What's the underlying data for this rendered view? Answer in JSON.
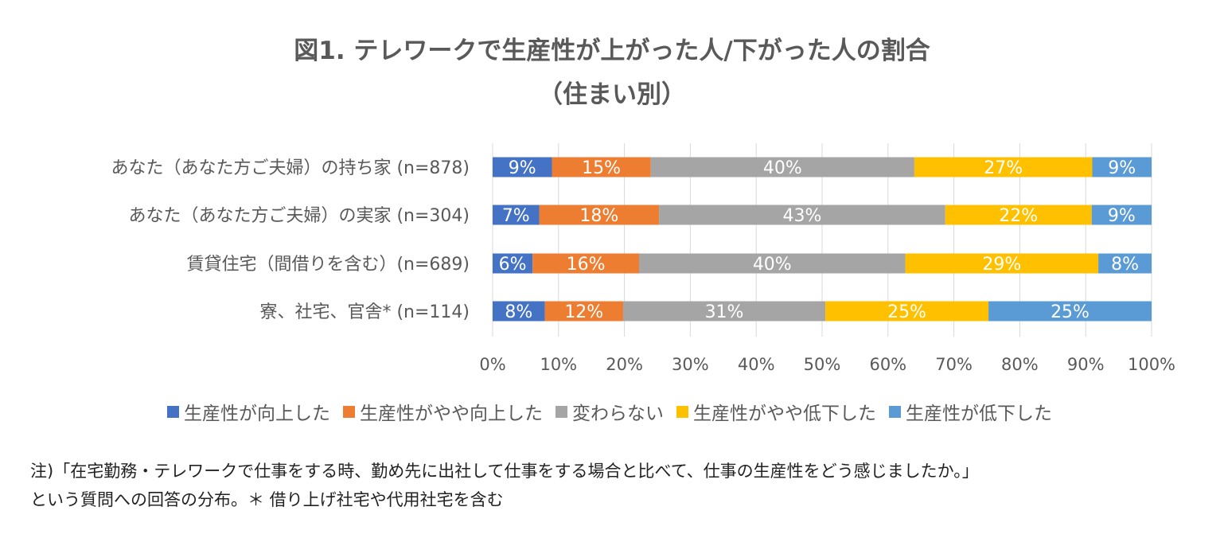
{
  "title_line1": "図1. テレワークで生産性が上がった人/下がった人の割合",
  "title_line2": "（住まい別）",
  "chart_data": {
    "type": "bar",
    "orientation": "horizontal",
    "stacked": "percent",
    "categories": [
      "あなた（あなた方ご夫婦）の持ち家 (n=878)",
      "あなた（あなた方ご夫婦）の実家 (n=304)",
      "賃貸住宅（間借りを含む）(n=689)",
      "寮、社宅、官舎* (n=114)"
    ],
    "series": [
      {
        "name": "生産性が向上した",
        "color": "#4472C4",
        "values": [
          9,
          7,
          6,
          8
        ],
        "labels": [
          "9%",
          "7%",
          "6%",
          "8%"
        ]
      },
      {
        "name": "生産性がやや向上した",
        "color": "#ED7D31",
        "values": [
          15,
          18,
          16,
          12
        ],
        "labels": [
          "15%",
          "18%",
          "16%",
          "12%"
        ]
      },
      {
        "name": "変わらない",
        "color": "#A5A5A5",
        "values": [
          40,
          43,
          40,
          31
        ],
        "labels": [
          "40%",
          "43%",
          "40%",
          "31%"
        ]
      },
      {
        "name": "生産性がやや低下した",
        "color": "#FFC000",
        "values": [
          27,
          22,
          29,
          25
        ],
        "labels": [
          "27%",
          "22%",
          "29%",
          "25%"
        ]
      },
      {
        "name": "生産性が低下した",
        "color": "#5B9BD5",
        "values": [
          9,
          9,
          8,
          25
        ],
        "labels": [
          "9%",
          "9%",
          "8%",
          "25%"
        ]
      }
    ],
    "xlim": [
      0,
      100
    ],
    "xticks": [
      "0%",
      "10%",
      "20%",
      "30%",
      "40%",
      "50%",
      "60%",
      "70%",
      "80%",
      "90%",
      "100%"
    ],
    "grid": true,
    "legend_position": "bottom"
  },
  "note_line1": "注)「在宅勤務・テレワークで仕事をする時、勤め先に出社して仕事をする場合と比べて、仕事の生産性をどう感じましたか。」",
  "note_line2": "という質問への回答の分布。＊ 借り上げ社宅や代用社宅を含む"
}
